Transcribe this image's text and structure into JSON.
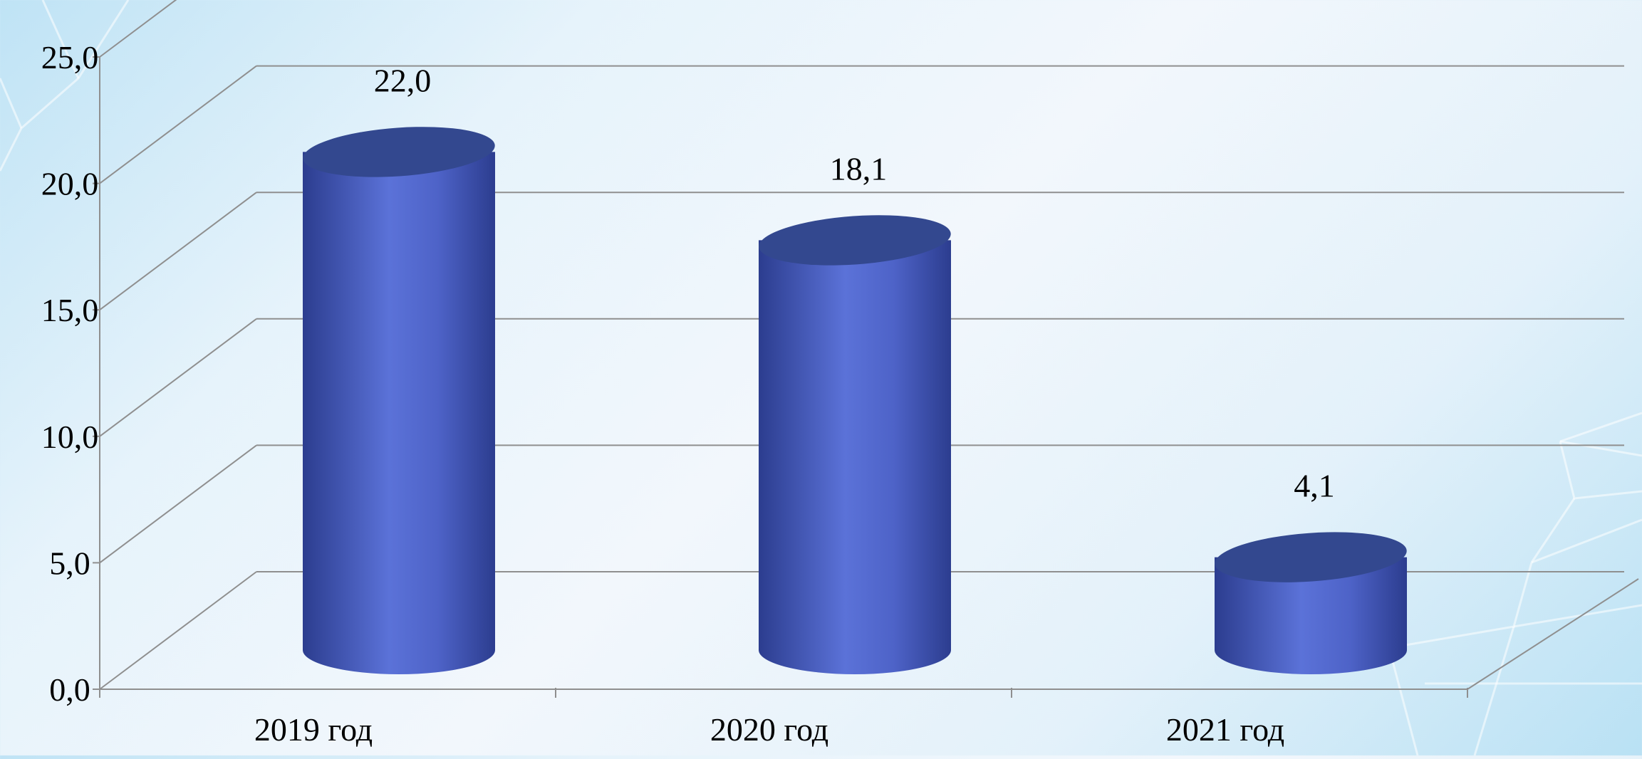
{
  "chart_data": {
    "type": "bar",
    "categories": [
      "2019 год",
      "2020 год",
      "2021 год"
    ],
    "values": [
      22.0,
      18.1,
      4.1
    ],
    "value_labels": [
      "22,0",
      "18,1",
      "4,1"
    ],
    "yticks": [
      "0,0",
      "5,0",
      "10,0",
      "15,0",
      "20,0",
      "25,0"
    ],
    "ylim": [
      0,
      25
    ],
    "title": "",
    "xlabel": "",
    "ylabel": "",
    "grid": true,
    "legend": "none",
    "bar_shape": "cylinder-3d",
    "colors": {
      "bar_light": "#5b72d8",
      "bar_dark": "#2c3d8f",
      "bar_top": "#33488f",
      "grid": "#8f8f8f"
    }
  }
}
